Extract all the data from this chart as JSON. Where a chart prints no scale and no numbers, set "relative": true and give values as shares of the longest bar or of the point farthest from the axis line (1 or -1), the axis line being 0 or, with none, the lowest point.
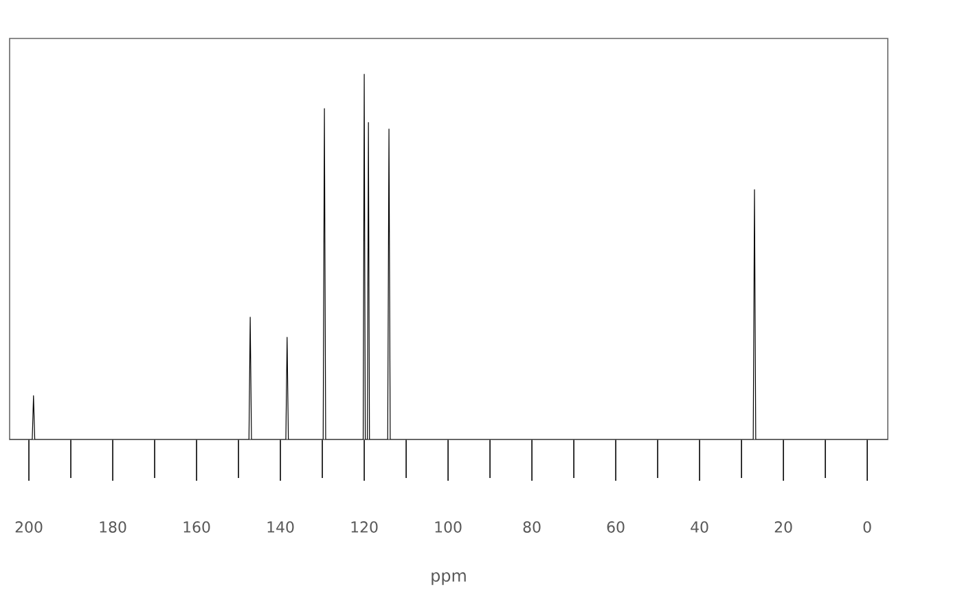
{
  "chart_data": {
    "type": "line",
    "xlabel": "ppm",
    "relative": true,
    "xlim": [
      204.6,
      -4.9
    ],
    "xticks": [
      200,
      180,
      160,
      140,
      120,
      100,
      80,
      60,
      40,
      20,
      0
    ],
    "tick_labels": "x",
    "grid": false,
    "marker": "none",
    "line_style": "solid",
    "series": [
      {
        "color": "#000000",
        "x": [
          204.6,
          199.2,
          198.9,
          198.6,
          147.5,
          147.2,
          146.9,
          138.7,
          138.4,
          138.1,
          129.8,
          129.5,
          129.2,
          120.25,
          120.0,
          119.75,
          119.25,
          119.0,
          118.75,
          114.4,
          114.1,
          113.8,
          27.2,
          26.9,
          26.6,
          -4.9
        ],
        "values": [
          0,
          0,
          0.12,
          0,
          0,
          0.335,
          0,
          0,
          0.28,
          0,
          0,
          0.906,
          0,
          0,
          1,
          0,
          0,
          0.868,
          0,
          0,
          0.85,
          0,
          0,
          0.684,
          0,
          0
        ]
      }
    ]
  }
}
